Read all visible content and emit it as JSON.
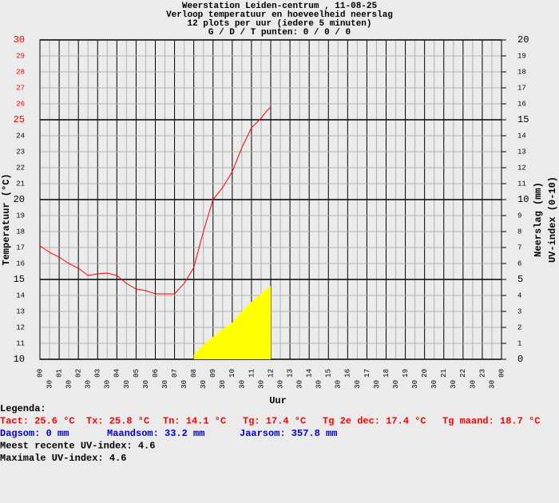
{
  "chart_data": {
    "type": "line",
    "title": [
      "Weerstation Leiden-centrum , 11-08-25",
      "Verloop temperatuur en hoeveelheid neerslag",
      "12 plots per uur (iedere 5 minuten)",
      "G / D / T punten: 0 / 0 / 0"
    ],
    "xlabel": "Uur",
    "ylabel": "Temperatuur (°C)",
    "y2label": [
      "Neerslag (mm)",
      "UV-index (0-10)"
    ],
    "xlim": [
      0,
      24
    ],
    "xticks": [
      {
        "value": 0,
        "label": "00"
      },
      {
        "value": 0.5,
        "label": "30"
      },
      {
        "value": 1,
        "label": "01"
      },
      {
        "value": 1.5,
        "label": "30"
      },
      {
        "value": 2,
        "label": "02"
      },
      {
        "value": 2.5,
        "label": "30"
      },
      {
        "value": 3,
        "label": "03"
      },
      {
        "value": 3.5,
        "label": "30"
      },
      {
        "value": 4,
        "label": "04"
      },
      {
        "value": 4.5,
        "label": "30"
      },
      {
        "value": 5,
        "label": "05"
      },
      {
        "value": 5.5,
        "label": "30"
      },
      {
        "value": 6,
        "label": "06"
      },
      {
        "value": 6.5,
        "label": "30"
      },
      {
        "value": 7,
        "label": "07"
      },
      {
        "value": 7.5,
        "label": "30"
      },
      {
        "value": 8,
        "label": "08"
      },
      {
        "value": 8.5,
        "label": "30"
      },
      {
        "value": 9,
        "label": "09"
      },
      {
        "value": 9.5,
        "label": "30"
      },
      {
        "value": 10,
        "label": "10"
      },
      {
        "value": 10.5,
        "label": "30"
      },
      {
        "value": 11,
        "label": "11"
      },
      {
        "value": 11.5,
        "label": "30"
      },
      {
        "value": 12,
        "label": "12"
      },
      {
        "value": 12.5,
        "label": "30"
      },
      {
        "value": 13,
        "label": "13"
      },
      {
        "value": 13.5,
        "label": "30"
      },
      {
        "value": 14,
        "label": "14"
      },
      {
        "value": 14.5,
        "label": "30"
      },
      {
        "value": 15,
        "label": "15"
      },
      {
        "value": 15.5,
        "label": "30"
      },
      {
        "value": 16,
        "label": "16"
      },
      {
        "value": 16.5,
        "label": "30"
      },
      {
        "value": 17,
        "label": "17"
      },
      {
        "value": 17.5,
        "label": "30"
      },
      {
        "value": 18,
        "label": "18"
      },
      {
        "value": 18.5,
        "label": "30"
      },
      {
        "value": 19,
        "label": "19"
      },
      {
        "value": 19.5,
        "label": "30"
      },
      {
        "value": 20,
        "label": "20"
      },
      {
        "value": 20.5,
        "label": "30"
      },
      {
        "value": 21,
        "label": "21"
      },
      {
        "value": 21.5,
        "label": "30"
      },
      {
        "value": 22,
        "label": "22"
      },
      {
        "value": 22.5,
        "label": "30"
      },
      {
        "value": 23,
        "label": "23"
      },
      {
        "value": 23.5,
        "label": "30"
      },
      {
        "value": 24,
        "label": "00"
      }
    ],
    "ylim": [
      10,
      30
    ],
    "yticks": [
      10,
      11,
      12,
      13,
      14,
      15,
      16,
      17,
      18,
      19,
      20,
      21,
      22,
      23,
      24,
      25,
      26,
      27,
      28,
      29,
      30
    ],
    "ytick_colors": [
      "#000000",
      "#000000",
      "#000000",
      "#000000",
      "#000000",
      "#000000",
      "#000000",
      "#000000",
      "#000000",
      "#000000",
      "#000000",
      "#000000",
      "#000000",
      "#000000",
      "#000000",
      "#ff0000",
      "#ff0000",
      "#ff0000",
      "#ff0000",
      "#ff0000",
      "#ff0000"
    ],
    "y2lim": [
      0,
      20
    ],
    "y2ticks": [
      0,
      1,
      2,
      3,
      4,
      5,
      6,
      7,
      8,
      9,
      10,
      11,
      12,
      13,
      14,
      15,
      16,
      17,
      18,
      19,
      20
    ],
    "grid": true,
    "series": [
      {
        "color": "#ff0000",
        "kind": "line",
        "x": [
          0,
          0.5,
          1,
          1.5,
          2,
          2.5,
          3,
          3.5,
          4,
          4.5,
          5,
          5.5,
          6,
          6.5,
          7,
          7.5,
          8,
          8.5,
          9,
          9.5,
          10,
          10.5,
          11,
          11.5,
          11.75,
          12
        ],
        "values": [
          17.1,
          16.7,
          16.4,
          16.0,
          15.7,
          15.25,
          15.35,
          15.4,
          15.25,
          14.75,
          14.4,
          14.3,
          14.1,
          14.1,
          14.1,
          14.75,
          15.75,
          18.0,
          20.0,
          20.75,
          21.75,
          23.25,
          24.5,
          25.1,
          25.5,
          25.8
        ]
      },
      {
        "color": "#ffff00",
        "kind": "area",
        "axis": "y2",
        "x": [
          8,
          8.5,
          9,
          9.5,
          10,
          10.5,
          11,
          11.5,
          12
        ],
        "values": [
          0.3,
          0.9,
          1.4,
          1.9,
          2.3,
          3.0,
          3.6,
          4.1,
          4.6
        ]
      }
    ],
    "notes": [
      [
        {
          "text": "Legenda:",
          "color": "#000000"
        }
      ],
      [
        {
          "text": "Tact: 25.6 °C",
          "color": "#ff0000"
        },
        {
          "text": "Tx: 25.8 °C",
          "color": "#ff0000"
        },
        {
          "text": "Tn: 14.1 °C",
          "color": "#ff0000"
        },
        {
          "text": "Tg: 17.4 °C",
          "color": "#ff0000"
        },
        {
          "text": "Tg 2e dec: 17.4 °C",
          "color": "#ff0000"
        },
        {
          "text": "Tg maand: 18.7 °C",
          "color": "#ff0000"
        }
      ],
      [
        {
          "text": "Dagsom: 0 mm",
          "color": "#0000cc"
        },
        {
          "text": "Maandsom: 33.2 mm",
          "color": "#0000cc"
        },
        {
          "text": "Jaarsom: 357.8 mm",
          "color": "#0000cc"
        }
      ],
      [
        {
          "text": "Meest recente UV-index: 4.6",
          "color": "#000000"
        }
      ],
      [
        {
          "text": "Maximale UV-index: 4.6",
          "color": "#000000"
        }
      ]
    ]
  }
}
